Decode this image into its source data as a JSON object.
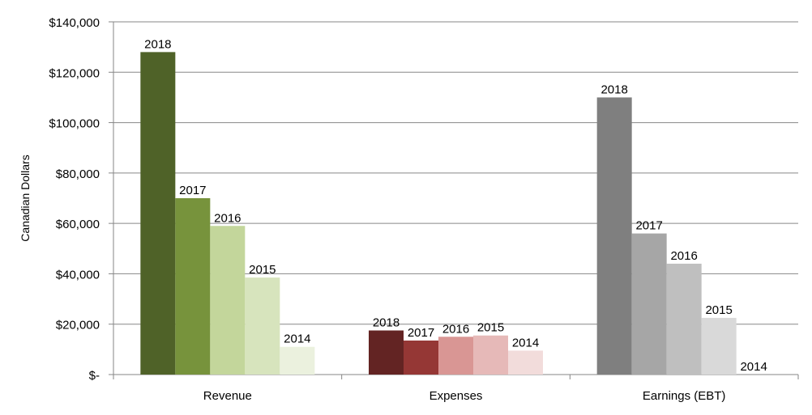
{
  "chart_data": {
    "type": "bar",
    "categories": [
      "Revenue",
      "Expenses",
      "Earnings (EBT)"
    ],
    "ylabel": "Canadian Dollars",
    "ylim": [
      0,
      140000
    ],
    "y_ticks": [
      "$-",
      "$20,000",
      "$40,000",
      "$60,000",
      "$80,000",
      "$100,000",
      "$120,000",
      "$140,000"
    ],
    "grid": true,
    "legend": "none",
    "series": [
      {
        "name": "2018",
        "values": [
          128000,
          17500,
          110000
        ]
      },
      {
        "name": "2017",
        "values": [
          70000,
          13500,
          56000
        ]
      },
      {
        "name": "2016",
        "values": [
          59000,
          15000,
          44000
        ]
      },
      {
        "name": "2015",
        "values": [
          38500,
          15500,
          22500
        ]
      },
      {
        "name": "2014",
        "values": [
          11000,
          9500,
          0
        ]
      }
    ],
    "colors": [
      [
        "#4f6228",
        "#77933c",
        "#c3d69b",
        "#d7e4bd",
        "#ebf1de"
      ],
      [
        "#632423",
        "#953735",
        "#d99694",
        "#e6b9b8",
        "#f2dcdb"
      ],
      [
        "#7f7f7f",
        "#a6a6a6",
        "#bfbfbf",
        "#d9d9d9",
        "#f2f2f2"
      ]
    ]
  }
}
